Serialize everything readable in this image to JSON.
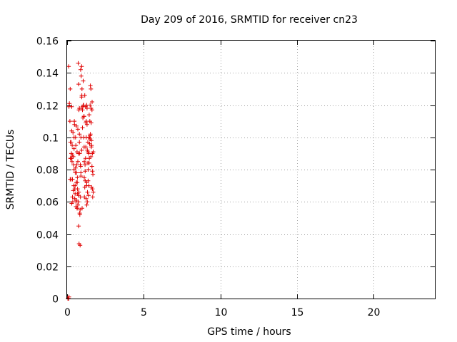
{
  "chart_data": {
    "type": "scatter",
    "title": "Day 209 of 2016, SRMTID for receiver cn23",
    "xlabel": "GPS time / hours",
    "ylabel": "SRMTID / TECUs",
    "xlim": [
      0,
      24
    ],
    "ylim": [
      0,
      0.16
    ],
    "xticks": [
      0,
      5,
      10,
      15,
      20
    ],
    "xtick_labels": [
      "0",
      "5",
      "10",
      "15",
      "20"
    ],
    "yticks": [
      0,
      0.02,
      0.04,
      0.06,
      0.08,
      0.1,
      0.12,
      0.14,
      0.16
    ],
    "ytick_labels": [
      "0",
      "0.02",
      "0.04",
      "0.06",
      "0.08",
      "0.1",
      "0.12",
      "0.14",
      "0.16"
    ],
    "grid": true,
    "marker": "+",
    "color": "#e00000",
    "series": [
      {
        "name": "cn23",
        "x": [
          0.1,
          0.12,
          0.15,
          0.2,
          0.22,
          0.25,
          0.28,
          0.3,
          0.32,
          0.35,
          0.37,
          0.4,
          0.42,
          0.45,
          0.47,
          0.5,
          0.52,
          0.55,
          0.57,
          0.6,
          0.62,
          0.65,
          0.67,
          0.7,
          0.72,
          0.75,
          0.77,
          0.8,
          0.82,
          0.85,
          0.87,
          0.9,
          0.92,
          0.95,
          0.97,
          1.0,
          1.02,
          1.05,
          1.07,
          1.1,
          1.12,
          1.15,
          1.17,
          1.2,
          1.22,
          1.25,
          1.27,
          1.3,
          1.32,
          1.35,
          1.37,
          1.4,
          1.42,
          1.45,
          1.47,
          1.5,
          1.52,
          1.55,
          1.57,
          1.6,
          1.62,
          1.65,
          1.67,
          1.7,
          0.18,
          0.26,
          0.34,
          0.43,
          0.5,
          0.58,
          0.66,
          0.73,
          0.8,
          0.88,
          0.96,
          1.03,
          1.11,
          1.18,
          1.26,
          1.33,
          1.41,
          1.48,
          1.56,
          1.63,
          0.24,
          0.38,
          0.53,
          0.68,
          0.83,
          0.98,
          1.13,
          1.28,
          1.43,
          1.58,
          0.2,
          0.45,
          0.7,
          0.95,
          1.2,
          1.45,
          1.65,
          0.3,
          0.6,
          0.9,
          1.1,
          1.3,
          1.5,
          0.75,
          0.78,
          0.85,
          0.68,
          0.74,
          0.9,
          1.25,
          0.05,
          0.1,
          0.12,
          0.22,
          0.3,
          0.55,
          0.6,
          0.62,
          0.65,
          0.8,
          0.88,
          1.05,
          1.35,
          1.38,
          1.55,
          1.6,
          1.65,
          1.7,
          1.62,
          1.5,
          1.42,
          1.22,
          1.15,
          1.0,
          0.92,
          0.48,
          0.4,
          0.33,
          0.28,
          0.35,
          0.45,
          0.52,
          0.58,
          0.66,
          0.7,
          0.73,
          0.76,
          0.82,
          0.86,
          0.95,
          1.08,
          1.12,
          1.18,
          1.24,
          1.28,
          1.32,
          1.36,
          1.44,
          1.52,
          1.58,
          1.68
        ],
        "y": [
          0.144,
          0.119,
          0.121,
          0.13,
          0.097,
          0.074,
          0.09,
          0.104,
          0.085,
          0.063,
          0.06,
          0.067,
          0.083,
          0.1,
          0.11,
          0.068,
          0.065,
          0.081,
          0.095,
          0.072,
          0.078,
          0.091,
          0.075,
          0.085,
          0.146,
          0.133,
          0.117,
          0.102,
          0.09,
          0.055,
          0.063,
          0.1,
          0.118,
          0.144,
          0.13,
          0.106,
          0.119,
          0.135,
          0.12,
          0.113,
          0.075,
          0.069,
          0.083,
          0.087,
          0.094,
          0.1,
          0.12,
          0.108,
          0.092,
          0.084,
          0.073,
          0.064,
          0.07,
          0.087,
          0.096,
          0.12,
          0.132,
          0.13,
          0.109,
          0.095,
          0.082,
          0.068,
          0.063,
          0.066,
          0.11,
          0.097,
          0.089,
          0.07,
          0.062,
          0.057,
          0.072,
          0.09,
          0.118,
          0.142,
          0.126,
          0.112,
          0.094,
          0.079,
          0.07,
          0.066,
          0.09,
          0.11,
          0.118,
          0.122,
          0.087,
          0.103,
          0.078,
          0.068,
          0.052,
          0.056,
          0.063,
          0.072,
          0.084,
          0.098,
          0.074,
          0.08,
          0.105,
          0.125,
          0.119,
          0.1,
          0.09,
          0.059,
          0.061,
          0.076,
          0.113,
          0.118,
          0.099,
          0.045,
          0.034,
          0.033,
          0.065,
          0.064,
          0.078,
          0.11,
          0,
          0,
          0.001,
          0.087,
          0.119,
          0.1,
          0.107,
          0.083,
          0.056,
          0.097,
          0.082,
          0.12,
          0.097,
          0.08,
          0.088,
          0.069,
          0.079,
          0.091,
          0.117,
          0.101,
          0.1,
          0.109,
          0.126,
          0.117,
          0.138,
          0.108,
          0.088,
          0.095,
          0.087,
          0.074,
          0.093,
          0.07,
          0.06,
          0.056,
          0.058,
          0.06,
          0.066,
          0.053,
          0.083,
          0.092,
          0.1,
          0.085,
          0.073,
          0.062,
          0.058,
          0.06,
          0.091,
          0.114,
          0.102,
          0.094,
          0.077
        ]
      }
    ]
  }
}
